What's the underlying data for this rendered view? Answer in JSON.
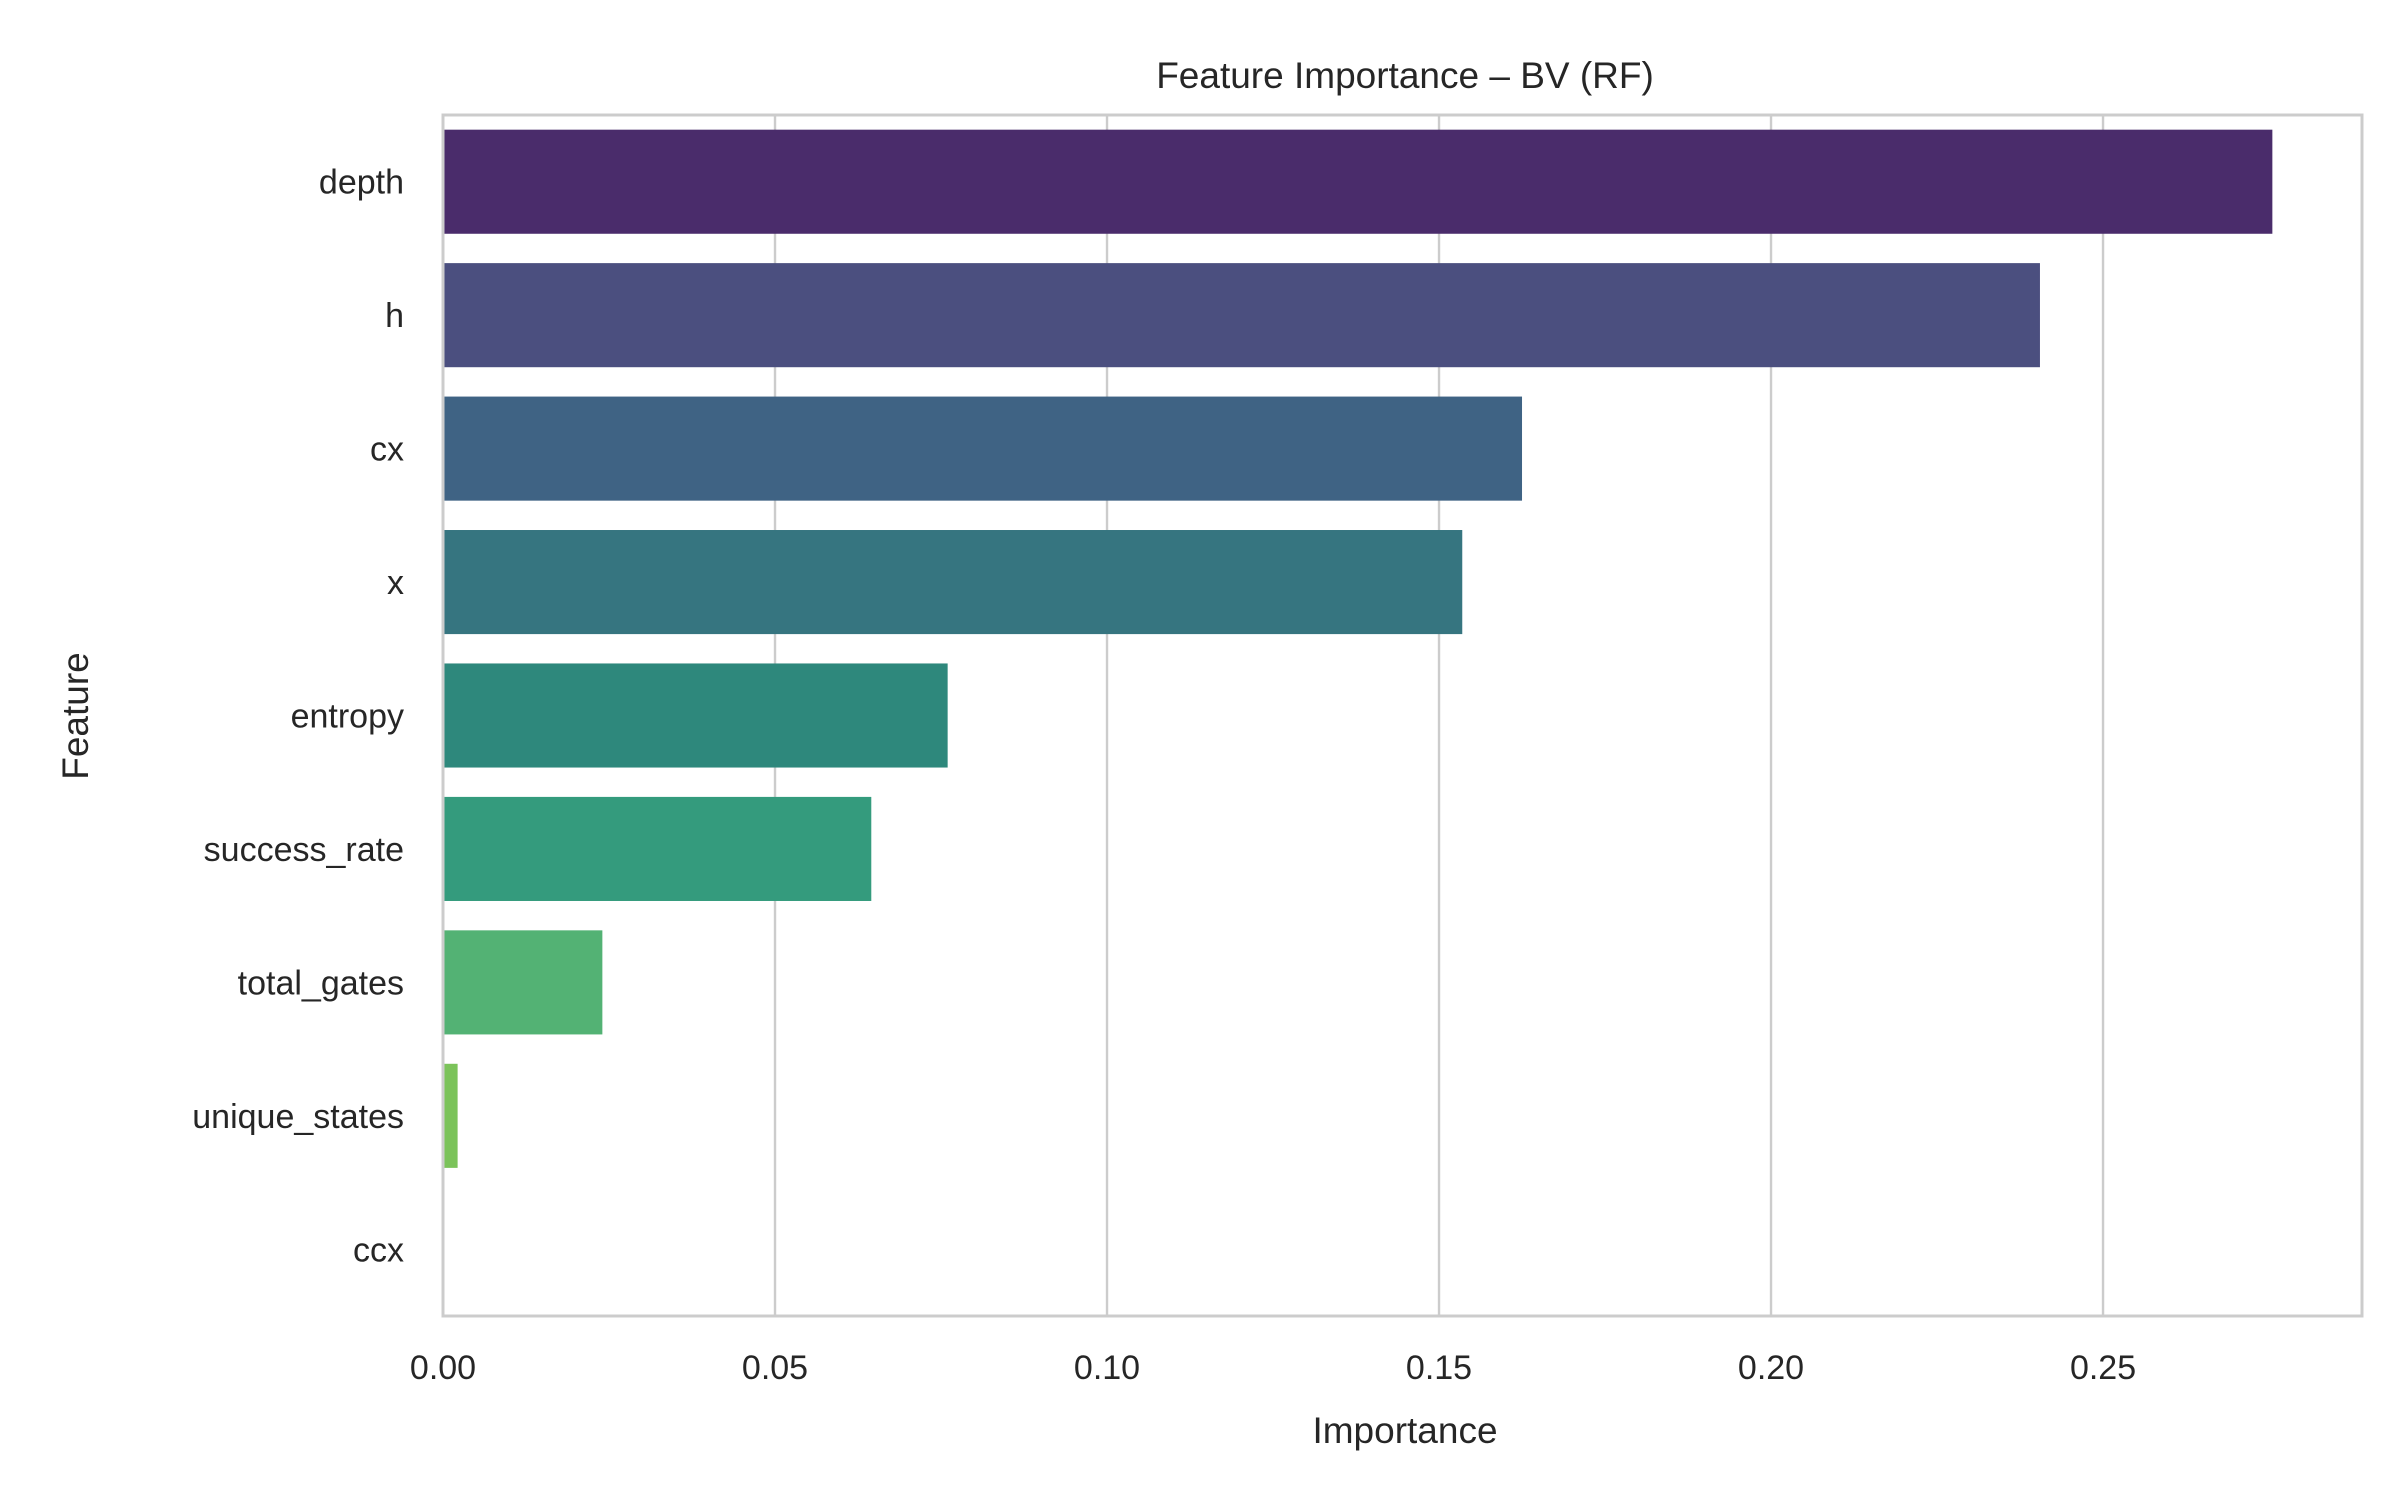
{
  "chart_data": {
    "type": "bar",
    "orientation": "horizontal",
    "title": "Feature Importance – BV (RF)",
    "xlabel": "Importance",
    "ylabel": "Feature",
    "categories": [
      "depth",
      "h",
      "cx",
      "x",
      "entropy",
      "success_rate",
      "total_gates",
      "unique_states",
      "ccx"
    ],
    "values": [
      0.2755,
      0.2405,
      0.1625,
      0.1535,
      0.076,
      0.0645,
      0.024,
      0.0022,
      0.0
    ],
    "xlim": [
      0,
      0.289
    ],
    "xticks": [
      0.0,
      0.05,
      0.1,
      0.15,
      0.2,
      0.25
    ],
    "xtick_labels": [
      "0.00",
      "0.05",
      "0.10",
      "0.15",
      "0.20",
      "0.25"
    ],
    "grid": true,
    "colors": [
      "#4a2c6b",
      "#4b4f7f",
      "#3f6384",
      "#367580",
      "#2e887c",
      "#349b7d",
      "#53b274",
      "#7bc35a",
      "#a9d143"
    ]
  }
}
